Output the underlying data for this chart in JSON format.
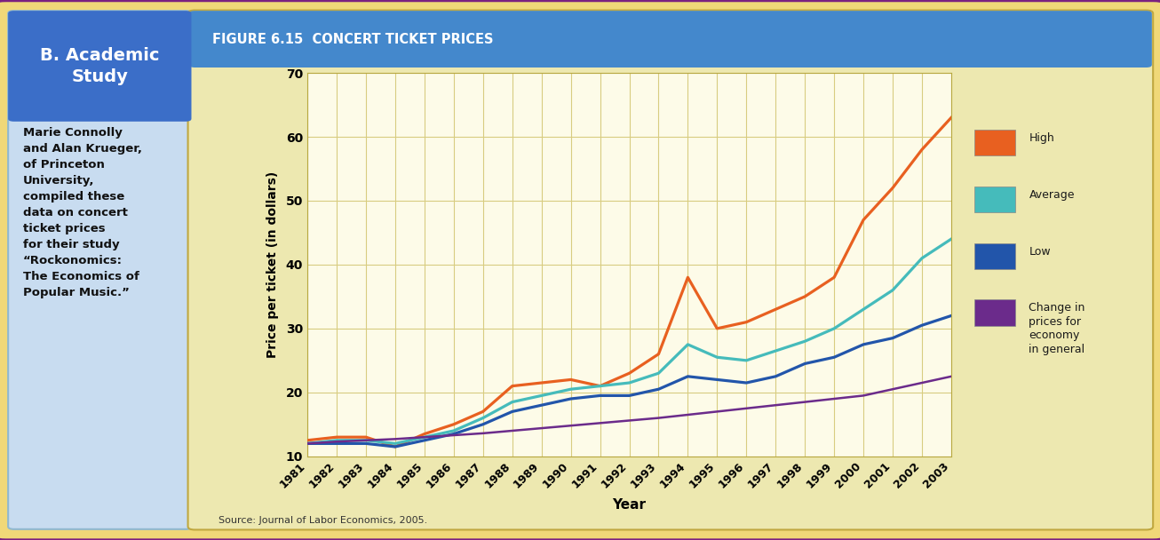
{
  "title": "FIGURE 6.15  CONCERT TICKET PRICES",
  "xlabel": "Year",
  "ylabel": "Price per ticket (in dollars)",
  "source": "Source: Journal of Labor Economics, 2005.",
  "years": [
    1981,
    1982,
    1983,
    1984,
    1985,
    1986,
    1987,
    1988,
    1989,
    1990,
    1991,
    1992,
    1993,
    1994,
    1995,
    1996,
    1997,
    1998,
    1999,
    2000,
    2001,
    2002,
    2003
  ],
  "high": [
    12.5,
    13.0,
    13.0,
    11.5,
    13.5,
    15.0,
    17.0,
    21.0,
    21.5,
    22.0,
    21.0,
    23.0,
    26.0,
    38.0,
    30.0,
    31.0,
    33.0,
    35.0,
    38.0,
    47.0,
    52.0,
    58.0,
    63.0
  ],
  "average": [
    12.0,
    12.5,
    12.5,
    12.0,
    13.0,
    14.0,
    16.0,
    18.5,
    19.5,
    20.5,
    21.0,
    21.5,
    23.0,
    27.5,
    25.5,
    25.0,
    26.5,
    28.0,
    30.0,
    33.0,
    36.0,
    41.0,
    44.0
  ],
  "low": [
    12.0,
    12.0,
    12.0,
    11.5,
    12.5,
    13.5,
    15.0,
    17.0,
    18.0,
    19.0,
    19.5,
    19.5,
    20.5,
    22.5,
    22.0,
    21.5,
    22.5,
    24.5,
    25.5,
    27.5,
    28.5,
    30.5,
    32.0
  ],
  "economy": [
    12.0,
    12.3,
    12.5,
    12.7,
    13.0,
    13.3,
    13.6,
    14.0,
    14.4,
    14.8,
    15.2,
    15.6,
    16.0,
    16.5,
    17.0,
    17.5,
    18.0,
    18.5,
    19.0,
    19.5,
    20.5,
    21.5,
    22.5
  ],
  "high_color": "#E86020",
  "average_color": "#45BBBB",
  "low_color": "#2255AA",
  "economy_color": "#6B2B8B",
  "bg_outer": "#F0D878",
  "bg_panel": "#EDE8B0",
  "bg_chart": "#FDFBE8",
  "ylim": [
    10,
    70
  ],
  "yticks": [
    10,
    20,
    30,
    40,
    50,
    60,
    70
  ],
  "side_panel_bg": "#C8DCF0",
  "side_title_bg": "#3B6EC8",
  "side_title_text": "B. Academic\nStudy",
  "side_body_text": "Marie Connolly\nand Alan Krueger,\nof Princeton\nUniversity,\ncompiled these\ndata on concert\nticket prices\nfor their study\n“Rockonomics:\nThe Economics of\nPopular Music.”",
  "legend_labels": [
    "High",
    "Average",
    "Low",
    "Change in\nprices for\neconomy\nin general"
  ],
  "outer_border_color": "#7B2080",
  "title_bar_color": "#4488CC",
  "grid_color": "#D8CC80",
  "title_sep_color": "#888844"
}
